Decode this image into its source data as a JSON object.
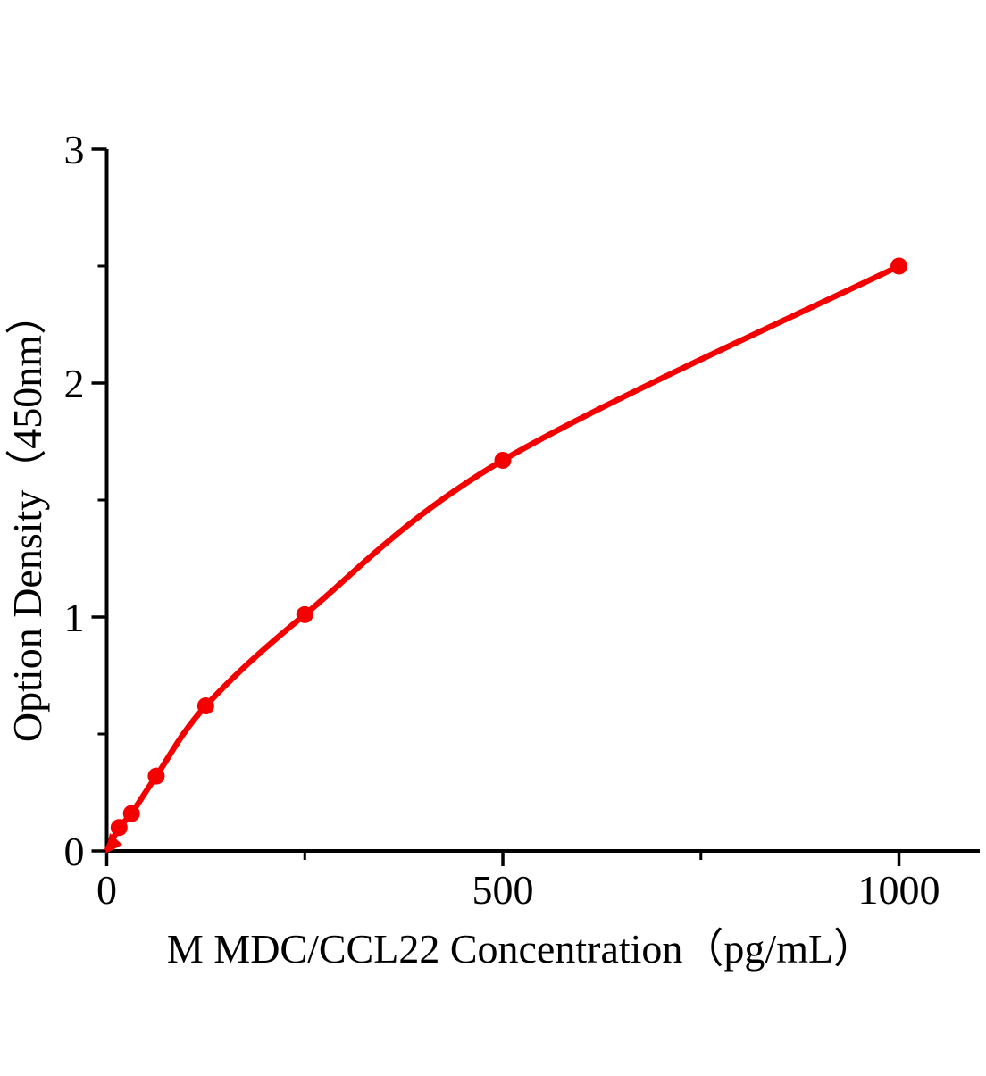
{
  "chart_data": {
    "type": "scatter",
    "title": "",
    "xlabel": "M  MDC/CCL22 Concentration（pg/mL）",
    "ylabel": "Option Density（450nm）",
    "x": [
      15.6,
      31.25,
      62.5,
      125,
      250,
      500,
      1000
    ],
    "y": [
      0.1,
      0.16,
      0.32,
      0.62,
      1.01,
      1.67,
      2.5
    ],
    "curve_start": [
      0,
      0
    ],
    "xlim": [
      0,
      1102
    ],
    "ylim": [
      0,
      3
    ],
    "x_major_ticks": [
      0,
      500,
      1000
    ],
    "x_minor_ticks": [
      250,
      750
    ],
    "y_major_ticks": [
      0,
      1,
      2,
      3
    ],
    "y_minor_ticks": [
      0.5,
      1.5,
      2.5
    ],
    "grid": false,
    "legend": "none",
    "line_color": "#f50000",
    "marker_color": "#f50000",
    "axis_color": "#000000",
    "text_color": "#000000"
  }
}
